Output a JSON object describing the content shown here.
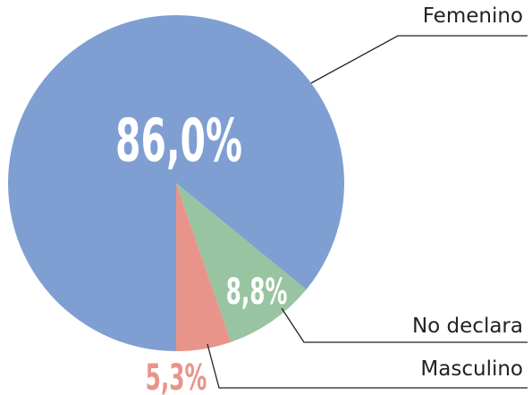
{
  "chart_data": {
    "type": "pie",
    "categories": [
      "Femenino",
      "No declara",
      "Masculino"
    ],
    "values": [
      86.0,
      8.8,
      5.3
    ],
    "value_labels": [
      "86,0%",
      "8,8%",
      "5,3%"
    ],
    "colors": [
      "#7f9fd3",
      "#99c4a2",
      "#e8948a"
    ]
  }
}
